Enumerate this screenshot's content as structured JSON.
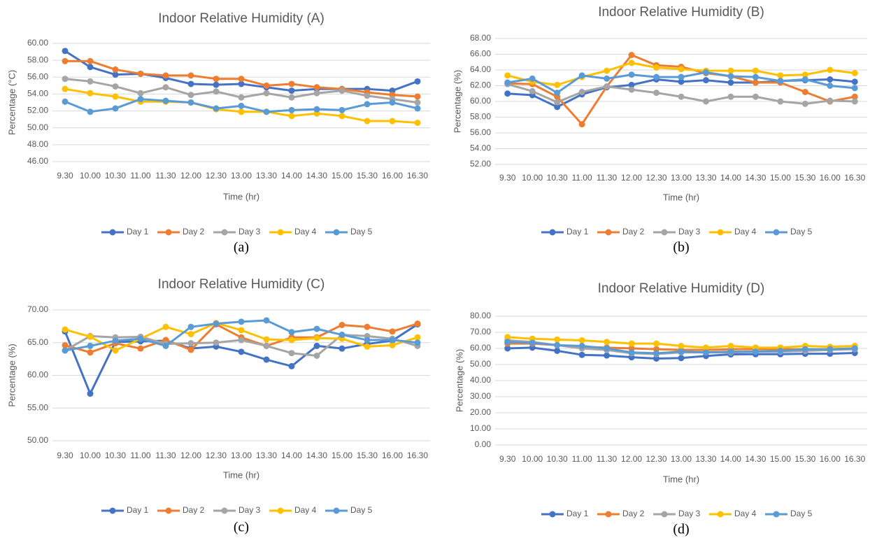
{
  "chart_data": [
    {
      "type": "line",
      "title": "Indoor Relative Humidity (A)",
      "xlabel": "Time (hr)",
      "ylabel": "Percentage (°C)",
      "caption": "(a)",
      "categories": [
        "9.30",
        "10.00",
        "10.30",
        "11.00",
        "11.30",
        "12.00",
        "12.30",
        "13.00",
        "13.30",
        "14.00",
        "14.30",
        "15.00",
        "15.30",
        "16.00",
        "16.30"
      ],
      "ylim": [
        46,
        60
      ],
      "yticks": [
        {
          "value": 46,
          "label": "46.00"
        },
        {
          "value": 48,
          "label": "48.00"
        },
        {
          "value": 50,
          "label": "50.00"
        },
        {
          "value": 52,
          "label": "52.00"
        },
        {
          "value": 54,
          "label": "54.00"
        },
        {
          "value": 56,
          "label": "56.00"
        },
        {
          "value": 58,
          "label": "58.00"
        },
        {
          "value": 60,
          "label": "60.00"
        }
      ],
      "grid": true,
      "legend": "bottom",
      "series": [
        {
          "name": "Day 1",
          "color": "#4472c4",
          "values": [
            59.1,
            57.2,
            56.3,
            56.4,
            55.9,
            55.2,
            55.1,
            55.2,
            54.8,
            54.4,
            54.6,
            54.6,
            54.6,
            54.4,
            55.5
          ]
        },
        {
          "name": "Day 2",
          "color": "#ed7d31",
          "values": [
            57.9,
            57.9,
            56.9,
            56.4,
            56.2,
            56.2,
            55.8,
            55.8,
            55.0,
            55.2,
            54.8,
            54.6,
            54.2,
            53.9,
            53.7
          ]
        },
        {
          "name": "Day 3",
          "color": "#a5a5a5",
          "values": [
            55.8,
            55.5,
            54.9,
            54.1,
            54.8,
            53.9,
            54.3,
            53.6,
            54.1,
            53.6,
            54.1,
            54.4,
            53.8,
            53.4,
            53.0
          ]
        },
        {
          "name": "Day 4",
          "color": "#ffc000",
          "values": [
            54.6,
            54.1,
            53.7,
            53.1,
            53.1,
            53.0,
            52.2,
            51.9,
            51.9,
            51.4,
            51.7,
            51.4,
            50.8,
            50.8,
            50.6
          ]
        },
        {
          "name": "Day 5",
          "color": "#5b9bd5",
          "values": [
            53.1,
            51.9,
            52.3,
            53.4,
            53.2,
            53.0,
            52.3,
            52.6,
            51.9,
            52.1,
            52.2,
            52.1,
            52.8,
            53.0,
            52.3
          ]
        }
      ]
    },
    {
      "type": "line",
      "title": "Indoor Relative Humidity (B)",
      "xlabel": "Time (hr)",
      "ylabel": "Percentage (%)",
      "caption": "(b)",
      "categories": [
        "9.30",
        "10.00",
        "10.30",
        "11.00",
        "11.30",
        "12.00",
        "12.30",
        "13.00",
        "13.30",
        "14.00",
        "14.30",
        "15.00",
        "15.30",
        "16.00",
        "16.30"
      ],
      "ylim": [
        52,
        68
      ],
      "yticks": [
        {
          "value": 52,
          "label": "52.00"
        },
        {
          "value": 54,
          "label": "54.00"
        },
        {
          "value": 56,
          "label": "56.00"
        },
        {
          "value": 58,
          "label": "58.00"
        },
        {
          "value": 60,
          "label": "60.00"
        },
        {
          "value": 62,
          "label": "62.00"
        },
        {
          "value": 64,
          "label": "64.00"
        },
        {
          "value": 66,
          "label": "66.00"
        },
        {
          "value": 68,
          "label": "68.00"
        }
      ],
      "grid": true,
      "legend": "bottom",
      "series": [
        {
          "name": "Day 1",
          "color": "#4472c4",
          "values": [
            61.0,
            60.8,
            59.3,
            60.9,
            61.8,
            62.1,
            62.8,
            62.5,
            62.7,
            62.4,
            62.4,
            62.6,
            62.7,
            62.8,
            62.5
          ]
        },
        {
          "name": "Day 2",
          "color": "#ed7d31",
          "values": [
            62.3,
            62.2,
            60.6,
            57.1,
            61.9,
            65.9,
            64.6,
            64.4,
            63.6,
            63.2,
            62.4,
            62.4,
            61.2,
            60.0,
            60.6
          ]
        },
        {
          "name": "Day 3",
          "color": "#a5a5a5",
          "values": [
            62.2,
            61.3,
            59.9,
            61.2,
            61.9,
            61.5,
            61.1,
            60.6,
            60.0,
            60.6,
            60.6,
            60.0,
            59.7,
            60.1,
            60.0
          ]
        },
        {
          "name": "Day 4",
          "color": "#ffc000",
          "values": [
            63.3,
            62.5,
            62.1,
            63.1,
            63.9,
            64.9,
            64.3,
            64.1,
            63.9,
            63.9,
            63.9,
            63.3,
            63.4,
            64.0,
            63.6
          ]
        },
        {
          "name": "Day 5",
          "color": "#5b9bd5",
          "values": [
            62.4,
            62.9,
            61.1,
            63.3,
            62.9,
            63.4,
            63.1,
            63.1,
            63.7,
            63.2,
            63.1,
            62.6,
            62.8,
            62.0,
            61.7
          ]
        }
      ]
    },
    {
      "type": "line",
      "title": "Indoor Relative Humidity (C)",
      "xlabel": "Time (hr)",
      "ylabel": "Percentage (%)",
      "caption": "(c)",
      "categories": [
        "9.30",
        "10.00",
        "10.30",
        "11.00",
        "11.30",
        "12.00",
        "12.30",
        "13.00",
        "13.30",
        "14.00",
        "14.30",
        "15.00",
        "15.30",
        "16.00",
        "16.30"
      ],
      "ylim": [
        50,
        70
      ],
      "yticks": [
        {
          "value": 50,
          "label": "50.00"
        },
        {
          "value": 55,
          "label": "55.00"
        },
        {
          "value": 60,
          "label": "60.00"
        },
        {
          "value": 65,
          "label": "65.00"
        },
        {
          "value": 70,
          "label": "70.00"
        }
      ],
      "grid": true,
      "legend": "bottom",
      "series": [
        {
          "name": "Day 1",
          "color": "#4472c4",
          "values": [
            66.7,
            57.2,
            65.1,
            65.2,
            65.3,
            64.1,
            64.4,
            63.6,
            62.4,
            61.4,
            64.5,
            64.1,
            64.8,
            65.3,
            67.8
          ]
        },
        {
          "name": "Day 2",
          "color": "#ed7d31",
          "values": [
            64.6,
            63.5,
            64.9,
            64.1,
            65.4,
            63.9,
            67.8,
            65.8,
            64.5,
            65.8,
            65.8,
            67.7,
            67.4,
            66.7,
            67.9
          ]
        },
        {
          "name": "Day 3",
          "color": "#a5a5a5",
          "values": [
            63.8,
            66.0,
            65.8,
            65.9,
            64.8,
            64.9,
            65.0,
            65.4,
            64.5,
            63.4,
            63.0,
            66.2,
            66.0,
            65.6,
            64.5
          ]
        },
        {
          "name": "Day 4",
          "color": "#ffc000",
          "values": [
            67.0,
            65.9,
            63.8,
            65.6,
            67.4,
            66.3,
            68.0,
            66.9,
            65.5,
            65.4,
            65.7,
            65.6,
            64.4,
            64.6,
            65.8
          ]
        },
        {
          "name": "Day 5",
          "color": "#5b9bd5",
          "values": [
            63.8,
            64.5,
            65.3,
            65.6,
            64.5,
            67.4,
            67.9,
            68.2,
            68.4,
            66.6,
            67.1,
            66.2,
            65.4,
            65.4,
            65.0
          ]
        }
      ]
    },
    {
      "type": "line",
      "title": "Indoor Relative Humidity (D)",
      "xlabel": "Time (hr)",
      "ylabel": "Percentage (%)",
      "caption": "(d)",
      "categories": [
        "9.30",
        "10.00",
        "10.30",
        "11.00",
        "11.30",
        "12.00",
        "12.30",
        "13.00",
        "13.30",
        "14.00",
        "14.30",
        "15.00",
        "15.30",
        "16.00",
        "16.30"
      ],
      "ylim": [
        0,
        80
      ],
      "yticks": [
        {
          "value": 0,
          "label": "0.00"
        },
        {
          "value": 10,
          "label": "10.00"
        },
        {
          "value": 20,
          "label": "20.00"
        },
        {
          "value": 30,
          "label": "30.00"
        },
        {
          "value": 40,
          "label": "40.00"
        },
        {
          "value": 50,
          "label": "50.00"
        },
        {
          "value": 60,
          "label": "60.00"
        },
        {
          "value": 70,
          "label": "70.00"
        },
        {
          "value": 80,
          "label": "80.00"
        }
      ],
      "grid": true,
      "legend": "bottom",
      "series": [
        {
          "name": "Day 1",
          "color": "#4472c4",
          "values": [
            60,
            60.5,
            58.5,
            56,
            55.6,
            54.5,
            53.7,
            54,
            55.3,
            56.3,
            56.4,
            56.4,
            56.7,
            56.7,
            57.2
          ]
        },
        {
          "name": "Day 2",
          "color": "#ed7d31",
          "values": [
            63,
            63,
            62,
            61,
            60.5,
            60,
            59.5,
            59,
            59,
            59.5,
            59.5,
            59.5,
            59.5,
            59.5,
            60
          ]
        },
        {
          "name": "Day 3",
          "color": "#a5a5a5",
          "values": [
            65,
            64,
            62,
            60,
            59,
            57,
            56.5,
            57.5,
            57.5,
            57.5,
            58,
            58,
            58.5,
            59,
            59.5
          ]
        },
        {
          "name": "Day 4",
          "color": "#ffc000",
          "values": [
            67,
            66,
            65.5,
            65,
            64,
            63,
            63,
            61.5,
            60.5,
            61.5,
            60.5,
            60.5,
            61.5,
            61,
            61.5
          ]
        },
        {
          "name": "Day 5",
          "color": "#5b9bd5",
          "values": [
            64,
            63.5,
            62,
            61.5,
            60,
            57.5,
            57,
            58,
            57.5,
            58,
            58,
            58.5,
            59.5,
            59.5,
            60
          ]
        }
      ]
    }
  ]
}
